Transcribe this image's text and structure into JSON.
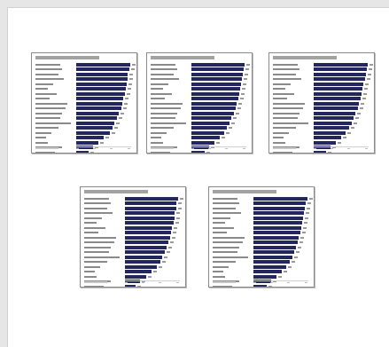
{
  "viewer": {
    "title": "",
    "bar_color": "#24265e"
  },
  "pages": [
    {
      "id": "p1",
      "values": [
        0.98,
        0.96,
        0.94,
        0.93,
        0.92,
        0.9,
        0.88,
        0.86,
        0.84,
        0.82,
        0.78,
        0.74,
        0.7,
        0.66,
        0.62,
        0.5,
        0.4,
        0.3,
        0.22
      ]
    },
    {
      "id": "p2",
      "values": [
        0.97,
        0.95,
        0.93,
        0.92,
        0.9,
        0.88,
        0.87,
        0.85,
        0.82,
        0.8,
        0.77,
        0.73,
        0.7,
        0.65,
        0.6,
        0.52,
        0.42,
        0.32,
        0.24
      ]
    },
    {
      "id": "p3",
      "values": [
        0.99,
        0.96,
        0.95,
        0.93,
        0.91,
        0.89,
        0.87,
        0.85,
        0.83,
        0.8,
        0.76,
        0.73,
        0.69,
        0.64,
        0.58,
        0.5,
        0.4,
        0.3,
        0.22
      ]
    },
    {
      "id": "p4",
      "values": [
        0.96,
        0.94,
        0.93,
        0.91,
        0.9,
        0.88,
        0.86,
        0.84,
        0.82,
        0.79,
        0.76,
        0.72,
        0.68,
        0.64,
        0.58,
        0.48,
        0.38,
        0.28,
        0.2
      ]
    },
    {
      "id": "p5",
      "values": [
        0.98,
        0.95,
        0.94,
        0.92,
        0.91,
        0.89,
        0.87,
        0.86,
        0.83,
        0.81,
        0.77,
        0.74,
        0.71,
        0.66,
        0.6,
        0.52,
        0.42,
        0.32,
        0.24
      ]
    }
  ]
}
